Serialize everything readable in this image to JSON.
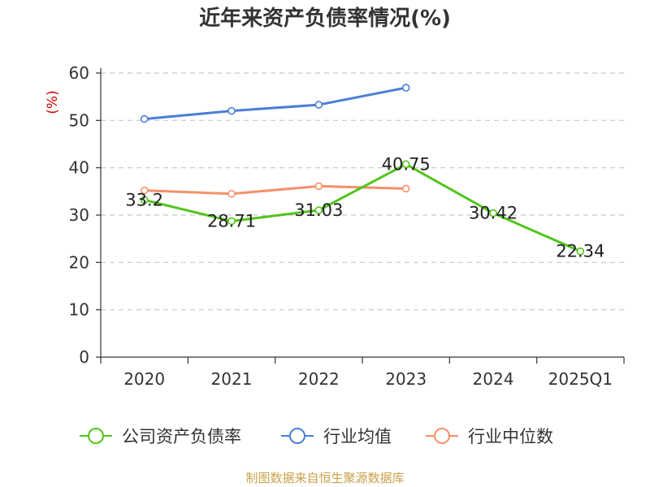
{
  "title": "近年来资产负债率情况(%)",
  "source": "制图数据来自恒生聚源数据库",
  "chart_data": {
    "type": "line",
    "title": "近年来资产负债率情况(%)",
    "xlabel": "",
    "ylabel": "(%)",
    "categories": [
      "2020",
      "2021",
      "2022",
      "2023",
      "2024",
      "2025Q1"
    ],
    "ylim": [
      0,
      60
    ],
    "yticks": [
      0,
      10,
      20,
      30,
      40,
      50,
      60
    ],
    "grid": true,
    "legend": "bottom",
    "series": [
      {
        "name": "公司资产负债率",
        "color": "#52c41a",
        "values": [
          33.2,
          28.71,
          31.03,
          40.75,
          30.42,
          22.34
        ],
        "labels": [
          "33.2",
          "28.71",
          "31.03",
          "40.75",
          "30.42",
          "22.34"
        ]
      },
      {
        "name": "行业均值",
        "color": "#4a7fd6",
        "values": [
          50.3,
          52.0,
          53.3,
          56.9,
          null,
          null
        ]
      },
      {
        "name": "行业中位数",
        "color": "#f5906a",
        "values": [
          35.2,
          34.5,
          36.1,
          35.6,
          null,
          null
        ]
      }
    ]
  }
}
